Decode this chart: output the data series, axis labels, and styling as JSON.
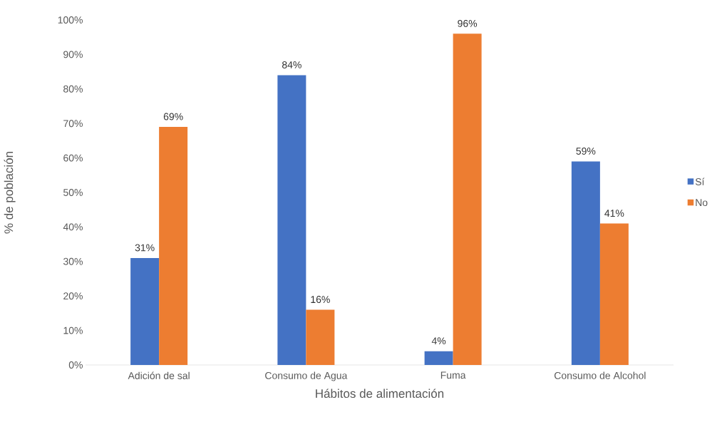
{
  "chart_data": {
    "type": "bar",
    "xlabel": "Hábitos de alimentación",
    "ylabel": "% de población",
    "categories": [
      "Adición de sal",
      "Consumo de Agua",
      "Fuma",
      "Consumo de Alcohol"
    ],
    "series": [
      {
        "name": "Sí",
        "color": "#4472c4",
        "values": [
          31,
          84,
          4,
          59
        ],
        "value_labels": [
          "31%",
          "84%",
          "4%",
          "59%"
        ]
      },
      {
        "name": "No",
        "color": "#ed7d31",
        "values": [
          69,
          16,
          96,
          41
        ],
        "value_labels": [
          "69%",
          "16%",
          "96%",
          "41%"
        ]
      }
    ],
    "ylim": [
      0,
      100
    ],
    "yticks": [
      {
        "value": 0,
        "label": "0%"
      },
      {
        "value": 10,
        "label": "10%"
      },
      {
        "value": 20,
        "label": "20%"
      },
      {
        "value": 30,
        "label": "30%"
      },
      {
        "value": 40,
        "label": "40%"
      },
      {
        "value": 50,
        "label": "50%"
      },
      {
        "value": 60,
        "label": "60%"
      },
      {
        "value": 70,
        "label": "70%"
      },
      {
        "value": 80,
        "label": "80%"
      },
      {
        "value": 90,
        "label": "90%"
      },
      {
        "value": 100,
        "label": "100%"
      }
    ],
    "legend": "right"
  }
}
